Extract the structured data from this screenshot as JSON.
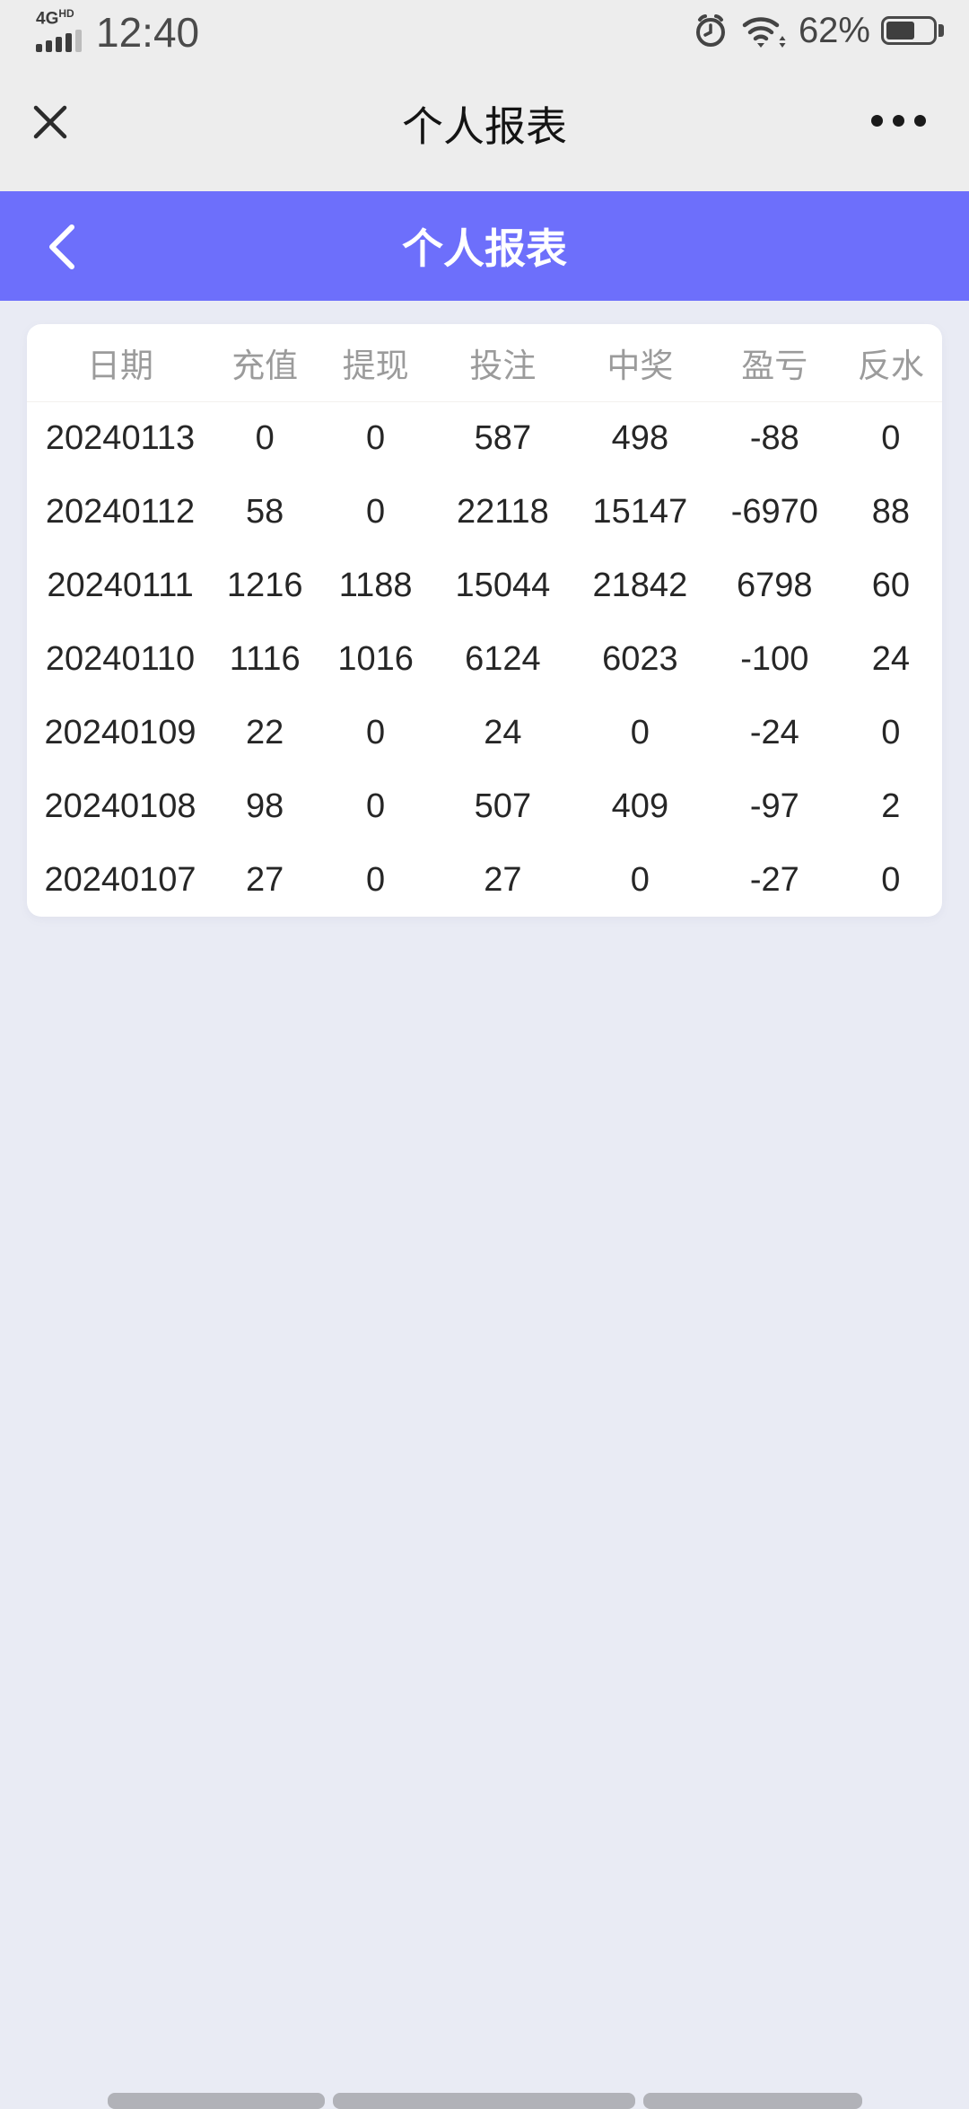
{
  "status_bar": {
    "network": "4G",
    "network_badge": "HD",
    "time": "12:40",
    "battery_percent": "62%",
    "battery_level": 62
  },
  "navbar": {
    "title": "个人报表"
  },
  "header": {
    "title": "个人报表"
  },
  "report_table": {
    "columns": [
      "日期",
      "充值",
      "提现",
      "投注",
      "中奖",
      "盈亏",
      "反水"
    ],
    "rows": [
      [
        "20240113",
        "0",
        "0",
        "587",
        "498",
        "-88",
        "0"
      ],
      [
        "20240112",
        "58",
        "0",
        "22118",
        "15147",
        "-6970",
        "88"
      ],
      [
        "20240111",
        "1216",
        "1188",
        "15044",
        "21842",
        "6798",
        "60"
      ],
      [
        "20240110",
        "1116",
        "1016",
        "6124",
        "6023",
        "-100",
        "24"
      ],
      [
        "20240109",
        "22",
        "0",
        "24",
        "0",
        "-24",
        "0"
      ],
      [
        "20240108",
        "98",
        "0",
        "507",
        "409",
        "-97",
        "2"
      ],
      [
        "20240107",
        "27",
        "0",
        "27",
        "0",
        "-27",
        "0"
      ]
    ]
  },
  "colors": {
    "accent": "#6d6ffb",
    "page_bg": "#e9ebf4",
    "bar_bg": "#ededed",
    "card_bg": "#ffffff",
    "column_header_text": "#9b9b9b",
    "cell_text": "#262626"
  }
}
